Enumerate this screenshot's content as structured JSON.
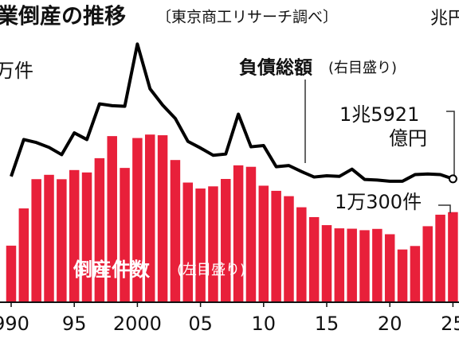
{
  "chart_data": {
    "type": "bar_line",
    "title": "業倒産の推移",
    "subtitle": "〔東京商工リサーチ調べ〕",
    "y_unit": "万件",
    "y2_unit": "兆円",
    "categories": [
      "990",
      null,
      null,
      null,
      null,
      "95",
      null,
      null,
      null,
      null,
      "2000",
      null,
      null,
      null,
      null,
      "05",
      null,
      null,
      null,
      null,
      "10",
      null,
      null,
      null,
      null,
      "15",
      null,
      null,
      null,
      null,
      "20",
      null,
      null,
      null,
      null,
      "25"
    ],
    "series": [
      {
        "name": "倒産件数",
        "note": "(左目盛り)",
        "color": "#e8203a",
        "values": [
          6468,
          10723,
          14069,
          14564,
          14061,
          15108,
          14834,
          16464,
          18988,
          15352,
          18769,
          19164,
          19087,
          16255,
          13679,
          12998,
          13245,
          14091,
          15646,
          15480,
          13321,
          12734,
          12124,
          10855,
          9731,
          8812,
          8446,
          8405,
          8235,
          8383,
          7773,
          6030,
          6428,
          8690,
          10006,
          10300
        ]
      },
      {
        "name": "負債総額",
        "note": "(右目盛り)",
        "color": "#000000",
        "axis": "y2",
        "values": [
          2.0,
          8.1,
          7.6,
          6.8,
          5.6,
          9.2,
          8.1,
          14.0,
          13.7,
          13.6,
          23.9,
          16.5,
          13.8,
          11.6,
          7.8,
          6.7,
          5.5,
          5.7,
          12.3,
          6.9,
          7.1,
          3.6,
          3.8,
          2.8,
          1.9,
          2.1,
          2.0,
          3.2,
          1.5,
          1.4,
          1.2,
          1.2,
          2.3,
          2.4,
          2.3,
          1.5921
        ]
      }
    ],
    "annotations": [
      "1兆5921",
      "億円",
      "1万300件"
    ],
    "ylim": [
      0,
      30000
    ],
    "y2lim": [
      0,
      30
    ]
  }
}
